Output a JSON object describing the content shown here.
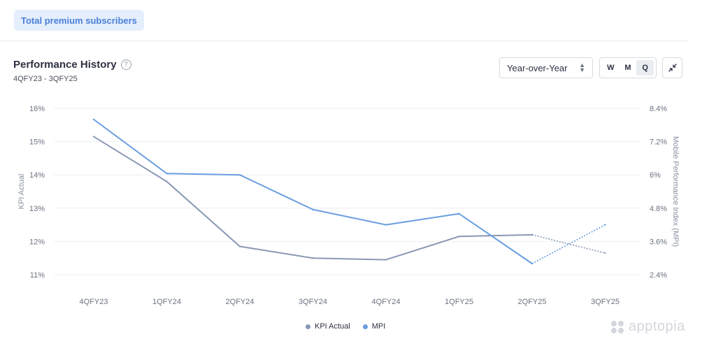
{
  "header": {
    "pill_label": "Total premium subscribers"
  },
  "panel": {
    "title": "Performance History",
    "help_glyph": "?",
    "date_range": "4QFY23 - 3QFY25"
  },
  "controls": {
    "comparison_value": "Year-over-Year",
    "granularity": [
      {
        "label": "W",
        "active": false
      },
      {
        "label": "M",
        "active": false
      },
      {
        "label": "Q",
        "active": true
      }
    ],
    "collapse_icon": "collapse-icon"
  },
  "brand": {
    "name": "apptopia"
  },
  "chart_data": {
    "type": "line",
    "categories": [
      "4QFY23",
      "1QFY24",
      "2QFY24",
      "3QFY24",
      "4QFY24",
      "1QFY25",
      "2QFY25",
      "3QFY25"
    ],
    "ylabel": "KPI Actual",
    "y2label": "Mobile Performance Index (MPI)",
    "ylim": [
      11,
      16
    ],
    "y2lim": [
      2.4,
      8.4
    ],
    "yticks": [
      "11%",
      "12%",
      "13%",
      "14%",
      "15%",
      "16%"
    ],
    "y2ticks": [
      "2.4%",
      "3.6%",
      "4.8%",
      "6%",
      "7.2%",
      "8.4%"
    ],
    "grid": true,
    "legend_position": "bottom",
    "series": [
      {
        "name": "KPI Actual",
        "axis": "left",
        "color": "#8a98b4",
        "values": [
          15.15,
          13.8,
          11.85,
          11.5,
          11.45,
          12.15,
          12.2,
          11.65
        ],
        "projected_from_index": 6
      },
      {
        "name": "MPI",
        "axis": "right",
        "color": "#6a9ee0",
        "values": [
          8.0,
          6.05,
          6.0,
          4.75,
          4.2,
          4.6,
          2.8,
          4.2
        ],
        "projected_from_index": 6
      }
    ]
  }
}
